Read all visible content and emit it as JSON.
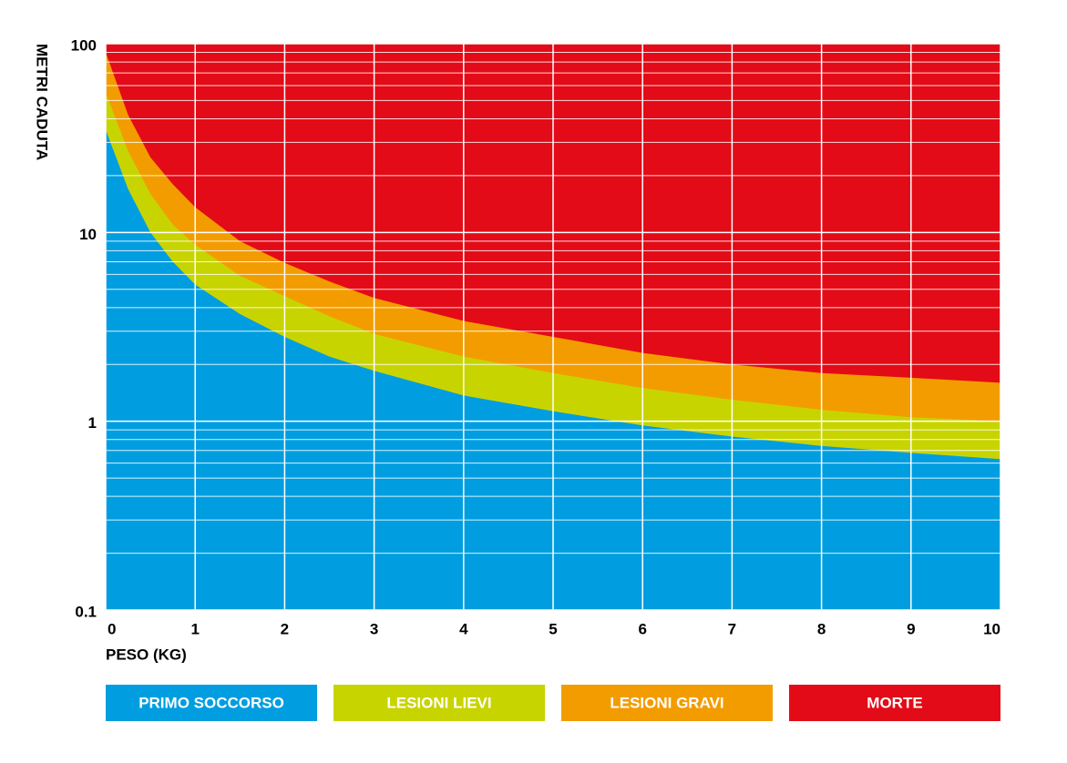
{
  "chart_data": {
    "type": "area",
    "ylabel": "METRI CADUTA",
    "xlabel": "PESO (KG)",
    "log_y": true,
    "grid": true,
    "x": [
      0,
      0.25,
      0.5,
      0.75,
      1,
      1.5,
      2,
      2.5,
      3,
      4,
      5,
      6,
      7,
      8,
      9,
      10
    ],
    "xlim": [
      0,
      10
    ],
    "xticks": [
      0,
      1,
      2,
      3,
      4,
      5,
      6,
      7,
      8,
      9,
      10
    ],
    "ylim": [
      0.1,
      100
    ],
    "yticks": [
      0.1,
      1,
      10,
      100
    ],
    "yminorticks": [
      0.2,
      0.3,
      0.4,
      0.5,
      0.6,
      0.7,
      0.8,
      0.9,
      2,
      3,
      4,
      5,
      6,
      7,
      8,
      9,
      20,
      30,
      40,
      50,
      60,
      70,
      80,
      90
    ],
    "series": [
      {
        "name": "PRIMO SOCCORSO",
        "color": "#009ee0",
        "values": [
          35,
          17,
          10,
          7,
          5.3,
          3.7,
          2.8,
          2.2,
          1.85,
          1.37,
          1.13,
          0.95,
          0.83,
          0.74,
          0.68,
          0.63
        ]
      },
      {
        "name": "LESIONI LIEVI",
        "color": "#c8d400",
        "values": [
          55,
          27,
          16,
          11,
          8.6,
          5.9,
          4.6,
          3.6,
          2.9,
          2.2,
          1.8,
          1.5,
          1.3,
          1.15,
          1.05,
          1.0
        ]
      },
      {
        "name": "LESIONI GRAVI",
        "color": "#f39c00",
        "values": [
          90,
          42,
          25,
          18,
          13.6,
          9,
          6.9,
          5.5,
          4.5,
          3.4,
          2.8,
          2.3,
          2.0,
          1.8,
          1.7,
          1.6
        ]
      },
      {
        "name": "MORTE",
        "color": "#e30b17"
      }
    ]
  }
}
